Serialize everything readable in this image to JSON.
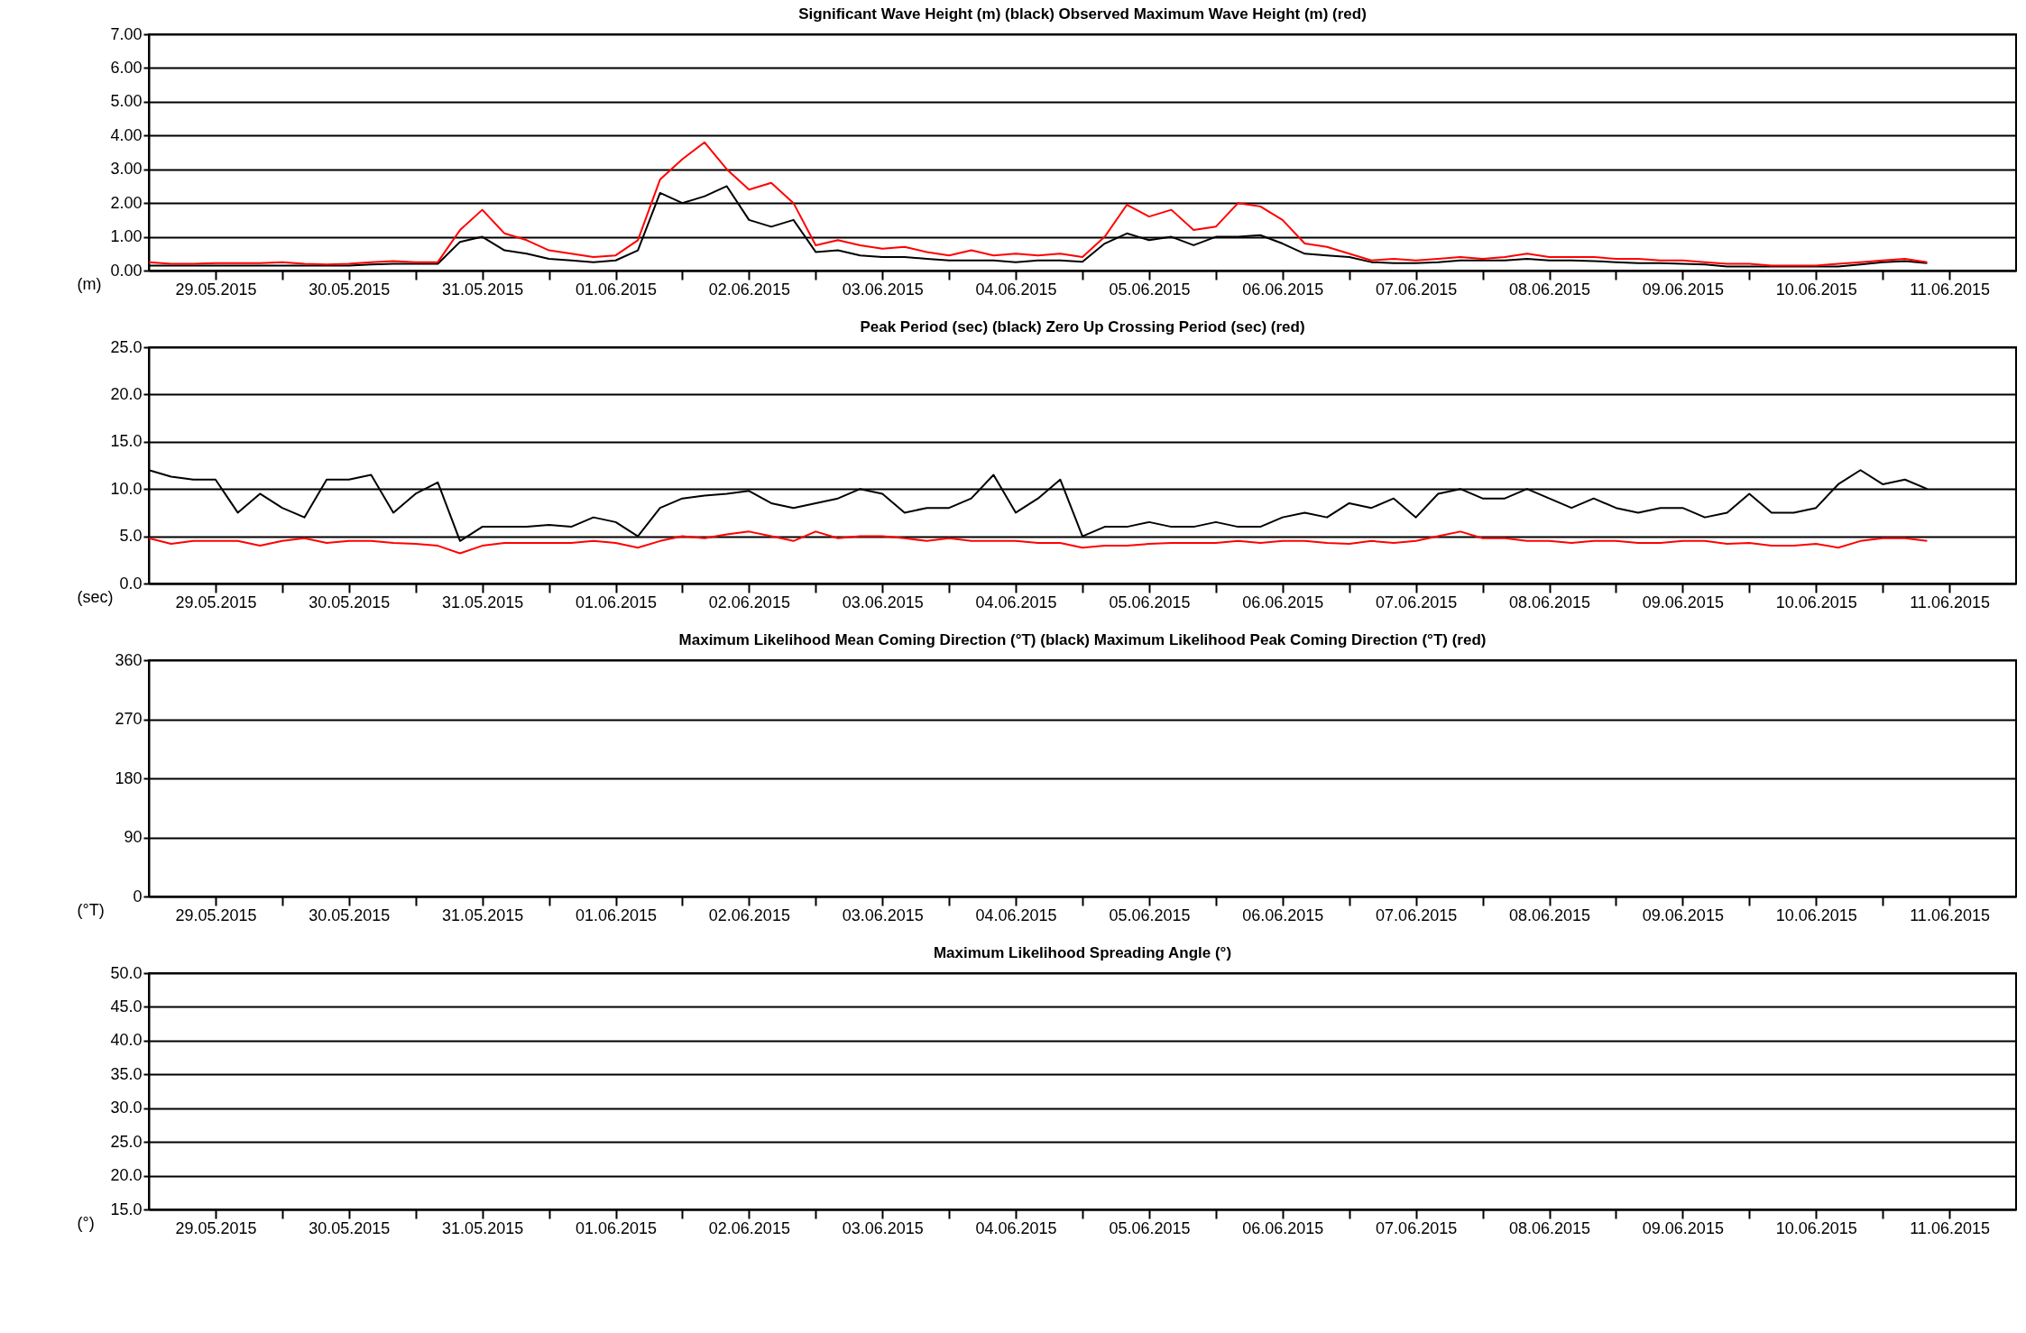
{
  "chart_data": [
    {
      "type": "line",
      "title": "Significant Wave Height (m) (black) Observed Maximum Wave Height (m) (red)",
      "ylabel": "(m)",
      "x": [
        "2015-05-29T00:00",
        "2015-05-29T04:00",
        "2015-05-29T08:00",
        "2015-05-29T12:00",
        "2015-05-29T16:00",
        "2015-05-29T20:00",
        "2015-05-30T00:00",
        "2015-05-30T04:00",
        "2015-05-30T08:00",
        "2015-05-30T12:00",
        "2015-05-30T16:00",
        "2015-05-30T20:00",
        "2015-05-31T00:00",
        "2015-05-31T04:00",
        "2015-05-31T08:00",
        "2015-05-31T12:00",
        "2015-05-31T16:00",
        "2015-05-31T20:00",
        "2015-06-01T00:00",
        "2015-06-01T04:00",
        "2015-06-01T08:00",
        "2015-06-01T12:00",
        "2015-06-01T16:00",
        "2015-06-01T20:00",
        "2015-06-02T00:00",
        "2015-06-02T04:00",
        "2015-06-02T08:00",
        "2015-06-02T12:00",
        "2015-06-02T16:00",
        "2015-06-02T20:00",
        "2015-06-03T00:00",
        "2015-06-03T04:00",
        "2015-06-03T08:00",
        "2015-06-03T12:00",
        "2015-06-03T16:00",
        "2015-06-03T20:00",
        "2015-06-04T00:00",
        "2015-06-04T04:00",
        "2015-06-04T08:00",
        "2015-06-04T12:00",
        "2015-06-04T16:00",
        "2015-06-04T20:00",
        "2015-06-05T00:00",
        "2015-06-05T04:00",
        "2015-06-05T08:00",
        "2015-06-05T12:00",
        "2015-06-05T16:00",
        "2015-06-05T20:00",
        "2015-06-06T00:00",
        "2015-06-06T04:00",
        "2015-06-06T08:00",
        "2015-06-06T12:00",
        "2015-06-06T16:00",
        "2015-06-06T20:00",
        "2015-06-07T00:00",
        "2015-06-07T04:00",
        "2015-06-07T08:00",
        "2015-06-07T12:00",
        "2015-06-07T16:00",
        "2015-06-07T20:00",
        "2015-06-08T00:00",
        "2015-06-08T04:00",
        "2015-06-08T08:00",
        "2015-06-08T12:00",
        "2015-06-08T16:00",
        "2015-06-08T20:00",
        "2015-06-09T00:00",
        "2015-06-09T04:00",
        "2015-06-09T08:00",
        "2015-06-09T12:00",
        "2015-06-09T16:00",
        "2015-06-09T20:00",
        "2015-06-10T00:00",
        "2015-06-10T04:00",
        "2015-06-10T08:00",
        "2015-06-10T12:00",
        "2015-06-10T16:00",
        "2015-06-10T20:00",
        "2015-06-11T00:00",
        "2015-06-11T04:00",
        "2015-06-11T08:00"
      ],
      "series": [
        {
          "color": "#000000",
          "values": [
            0.15,
            0.15,
            0.15,
            0.15,
            0.15,
            0.15,
            0.15,
            0.15,
            0.15,
            0.15,
            0.18,
            0.2,
            0.2,
            0.2,
            0.85,
            1.0,
            0.6,
            0.5,
            0.35,
            0.3,
            0.25,
            0.3,
            0.6,
            2.3,
            2.0,
            2.2,
            2.5,
            1.5,
            1.3,
            1.5,
            0.55,
            0.6,
            0.45,
            0.4,
            0.4,
            0.35,
            0.3,
            0.3,
            0.3,
            0.25,
            0.3,
            0.3,
            0.26,
            0.8,
            1.1,
            0.9,
            1.0,
            0.75,
            1.0,
            1.0,
            1.05,
            0.8,
            0.5,
            0.45,
            0.4,
            0.25,
            0.22,
            0.22,
            0.25,
            0.3,
            0.3,
            0.3,
            0.35,
            0.3,
            0.3,
            0.28,
            0.25,
            0.22,
            0.22,
            0.2,
            0.18,
            0.12,
            0.12,
            0.12,
            0.12,
            0.12,
            0.12,
            0.18,
            0.25,
            0.28,
            0.22
          ]
        },
        {
          "color": "#ff0000",
          "values": [
            0.25,
            0.2,
            0.2,
            0.22,
            0.22,
            0.22,
            0.25,
            0.2,
            0.18,
            0.2,
            0.25,
            0.28,
            0.25,
            0.25,
            1.2,
            1.8,
            1.1,
            0.9,
            0.6,
            0.5,
            0.4,
            0.45,
            0.9,
            2.7,
            3.3,
            3.8,
            3.0,
            2.4,
            2.6,
            2.0,
            0.75,
            0.9,
            0.75,
            0.65,
            0.7,
            0.55,
            0.45,
            0.6,
            0.45,
            0.5,
            0.45,
            0.5,
            0.4,
            1.0,
            1.95,
            1.6,
            1.8,
            1.2,
            1.3,
            2.0,
            1.9,
            1.5,
            0.8,
            0.7,
            0.5,
            0.3,
            0.35,
            0.3,
            0.35,
            0.4,
            0.35,
            0.4,
            0.5,
            0.4,
            0.4,
            0.4,
            0.35,
            0.35,
            0.3,
            0.3,
            0.25,
            0.2,
            0.2,
            0.15,
            0.15,
            0.15,
            0.2,
            0.25,
            0.3,
            0.35,
            0.25
          ]
        }
      ],
      "xlim": [
        "2015-05-29",
        "2015-06-12"
      ],
      "xticks": [
        {
          "value": "2015-05-29T12:00",
          "label": "29.05.2015"
        },
        {
          "value": "2015-05-30T12:00",
          "label": "30.05.2015"
        },
        {
          "value": "2015-05-31T12:00",
          "label": "31.05.2015"
        },
        {
          "value": "2015-06-01T12:00",
          "label": "01.06.2015"
        },
        {
          "value": "2015-06-02T12:00",
          "label": "02.06.2015"
        },
        {
          "value": "2015-06-03T12:00",
          "label": "03.06.2015"
        },
        {
          "value": "2015-06-04T12:00",
          "label": "04.06.2015"
        },
        {
          "value": "2015-06-05T12:00",
          "label": "05.06.2015"
        },
        {
          "value": "2015-06-06T12:00",
          "label": "06.06.2015"
        },
        {
          "value": "2015-06-07T12:00",
          "label": "07.06.2015"
        },
        {
          "value": "2015-06-08T12:00",
          "label": "08.06.2015"
        },
        {
          "value": "2015-06-09T12:00",
          "label": "09.06.2015"
        },
        {
          "value": "2015-06-10T12:00",
          "label": "10.06.2015"
        },
        {
          "value": "2015-06-11T12:00",
          "label": "11.06.2015"
        },
        {
          "value": "2015-05-30",
          "label": null
        },
        {
          "value": "2015-05-31",
          "label": null
        },
        {
          "value": "2015-06-01",
          "label": null
        },
        {
          "value": "2015-06-02",
          "label": null
        },
        {
          "value": "2015-06-03",
          "label": null
        },
        {
          "value": "2015-06-04",
          "label": null
        },
        {
          "value": "2015-06-05",
          "label": null
        },
        {
          "value": "2015-06-06",
          "label": null
        },
        {
          "value": "2015-06-07",
          "label": null
        },
        {
          "value": "2015-06-08",
          "label": null
        },
        {
          "value": "2015-06-09",
          "label": null
        },
        {
          "value": "2015-06-10",
          "label": null
        },
        {
          "value": "2015-06-11",
          "label": null
        }
      ],
      "ylim": [
        0,
        7
      ],
      "yticks": [
        {
          "value": 0,
          "label": "0.00"
        },
        {
          "value": 1,
          "label": "1.00"
        },
        {
          "value": 2,
          "label": "2.00"
        },
        {
          "value": 3,
          "label": "3.00"
        },
        {
          "value": 4,
          "label": "4.00"
        },
        {
          "value": 5,
          "label": "5.00"
        },
        {
          "value": 6,
          "label": "6.00"
        },
        {
          "value": 7,
          "label": "7.00"
        }
      ],
      "grid": true
    },
    {
      "type": "line",
      "title": "Peak Period (sec) (black) Zero Up Crossing Period (sec) (red)",
      "ylabel": "(sec)",
      "x": [
        "2015-05-29T00:00",
        "2015-05-29T04:00",
        "2015-05-29T08:00",
        "2015-05-29T12:00",
        "2015-05-29T16:00",
        "2015-05-29T20:00",
        "2015-05-30T00:00",
        "2015-05-30T04:00",
        "2015-05-30T08:00",
        "2015-05-30T12:00",
        "2015-05-30T16:00",
        "2015-05-30T20:00",
        "2015-05-31T00:00",
        "2015-05-31T04:00",
        "2015-05-31T08:00",
        "2015-05-31T12:00",
        "2015-05-31T16:00",
        "2015-05-31T20:00",
        "2015-06-01T00:00",
        "2015-06-01T04:00",
        "2015-06-01T08:00",
        "2015-06-01T12:00",
        "2015-06-01T16:00",
        "2015-06-01T20:00",
        "2015-06-02T00:00",
        "2015-06-02T04:00",
        "2015-06-02T08:00",
        "2015-06-02T12:00",
        "2015-06-02T16:00",
        "2015-06-02T20:00",
        "2015-06-03T00:00",
        "2015-06-03T04:00",
        "2015-06-03T08:00",
        "2015-06-03T12:00",
        "2015-06-03T16:00",
        "2015-06-03T20:00",
        "2015-06-04T00:00",
        "2015-06-04T04:00",
        "2015-06-04T08:00",
        "2015-06-04T12:00",
        "2015-06-04T16:00",
        "2015-06-04T20:00",
        "2015-06-05T00:00",
        "2015-06-05T04:00",
        "2015-06-05T08:00",
        "2015-06-05T12:00",
        "2015-06-05T16:00",
        "2015-06-05T20:00",
        "2015-06-06T00:00",
        "2015-06-06T04:00",
        "2015-06-06T08:00",
        "2015-06-06T12:00",
        "2015-06-06T16:00",
        "2015-06-06T20:00",
        "2015-06-07T00:00",
        "2015-06-07T04:00",
        "2015-06-07T08:00",
        "2015-06-07T12:00",
        "2015-06-07T16:00",
        "2015-06-07T20:00",
        "2015-06-08T00:00",
        "2015-06-08T04:00",
        "2015-06-08T08:00",
        "2015-06-08T12:00",
        "2015-06-08T16:00",
        "2015-06-08T20:00",
        "2015-06-09T00:00",
        "2015-06-09T04:00",
        "2015-06-09T08:00",
        "2015-06-09T12:00",
        "2015-06-09T16:00",
        "2015-06-09T20:00",
        "2015-06-10T00:00",
        "2015-06-10T04:00",
        "2015-06-10T08:00",
        "2015-06-10T12:00",
        "2015-06-10T16:00",
        "2015-06-10T20:00",
        "2015-06-11T00:00",
        "2015-06-11T04:00",
        "2015-06-11T08:00"
      ],
      "series": [
        {
          "color": "#000000",
          "values": [
            12.0,
            11.3,
            11.0,
            11.0,
            7.5,
            9.5,
            8.0,
            7.0,
            11.0,
            11.0,
            11.5,
            7.5,
            9.5,
            10.7,
            4.5,
            6.0,
            6.0,
            6.0,
            6.2,
            6.0,
            7.0,
            6.5,
            5.0,
            8.0,
            9.0,
            9.3,
            9.5,
            9.8,
            8.5,
            8.0,
            8.5,
            9.0,
            10.0,
            9.5,
            7.5,
            8.0,
            8.0,
            9.0,
            11.5,
            7.5,
            9.0,
            11.0,
            5.0,
            6.0,
            6.0,
            6.5,
            6.0,
            6.0,
            6.5,
            6.0,
            6.0,
            7.0,
            7.5,
            7.0,
            8.5,
            8.0,
            9.0,
            7.0,
            9.5,
            10.0,
            9.0,
            9.0,
            10.0,
            9.0,
            8.0,
            9.0,
            8.0,
            7.5,
            8.0,
            8.0,
            7.0,
            7.5,
            9.5,
            7.5,
            7.5,
            8.0,
            10.5,
            12.0,
            10.5,
            11.0,
            10.0
          ]
        },
        {
          "color": "#ff0000",
          "values": [
            4.8,
            4.2,
            4.5,
            4.5,
            4.5,
            4.0,
            4.5,
            4.8,
            4.3,
            4.5,
            4.5,
            4.3,
            4.2,
            4.0,
            3.2,
            4.0,
            4.3,
            4.3,
            4.3,
            4.3,
            4.5,
            4.3,
            3.8,
            4.5,
            5.0,
            4.8,
            5.2,
            5.5,
            5.0,
            4.5,
            5.5,
            4.8,
            5.0,
            5.0,
            4.8,
            4.5,
            4.8,
            4.5,
            4.5,
            4.5,
            4.3,
            4.3,
            3.8,
            4.0,
            4.0,
            4.2,
            4.3,
            4.3,
            4.3,
            4.5,
            4.3,
            4.5,
            4.5,
            4.3,
            4.2,
            4.5,
            4.3,
            4.5,
            5.0,
            5.5,
            4.8,
            4.8,
            4.5,
            4.5,
            4.3,
            4.5,
            4.5,
            4.3,
            4.3,
            4.5,
            4.5,
            4.2,
            4.3,
            4.0,
            4.0,
            4.2,
            3.8,
            4.5,
            4.8,
            4.8,
            4.5
          ]
        }
      ],
      "xlim": [
        "2015-05-29",
        "2015-06-12"
      ],
      "xticks": [
        {
          "value": "2015-05-29T12:00",
          "label": "29.05.2015"
        },
        {
          "value": "2015-05-30T12:00",
          "label": "30.05.2015"
        },
        {
          "value": "2015-05-31T12:00",
          "label": "31.05.2015"
        },
        {
          "value": "2015-06-01T12:00",
          "label": "01.06.2015"
        },
        {
          "value": "2015-06-02T12:00",
          "label": "02.06.2015"
        },
        {
          "value": "2015-06-03T12:00",
          "label": "03.06.2015"
        },
        {
          "value": "2015-06-04T12:00",
          "label": "04.06.2015"
        },
        {
          "value": "2015-06-05T12:00",
          "label": "05.06.2015"
        },
        {
          "value": "2015-06-06T12:00",
          "label": "06.06.2015"
        },
        {
          "value": "2015-06-07T12:00",
          "label": "07.06.2015"
        },
        {
          "value": "2015-06-08T12:00",
          "label": "08.06.2015"
        },
        {
          "value": "2015-06-09T12:00",
          "label": "09.06.2015"
        },
        {
          "value": "2015-06-10T12:00",
          "label": "10.06.2015"
        },
        {
          "value": "2015-06-11T12:00",
          "label": "11.06.2015"
        },
        {
          "value": "2015-05-30",
          "label": null
        },
        {
          "value": "2015-05-31",
          "label": null
        },
        {
          "value": "2015-06-01",
          "label": null
        },
        {
          "value": "2015-06-02",
          "label": null
        },
        {
          "value": "2015-06-03",
          "label": null
        },
        {
          "value": "2015-06-04",
          "label": null
        },
        {
          "value": "2015-06-05",
          "label": null
        },
        {
          "value": "2015-06-06",
          "label": null
        },
        {
          "value": "2015-06-07",
          "label": null
        },
        {
          "value": "2015-06-08",
          "label": null
        },
        {
          "value": "2015-06-09",
          "label": null
        },
        {
          "value": "2015-06-10",
          "label": null
        },
        {
          "value": "2015-06-11",
          "label": null
        }
      ],
      "ylim": [
        0,
        25
      ],
      "yticks": [
        {
          "value": 0,
          "label": "0.0"
        },
        {
          "value": 5,
          "label": "5.0"
        },
        {
          "value": 10,
          "label": "10.0"
        },
        {
          "value": 15,
          "label": "15.0"
        },
        {
          "value": 20,
          "label": "20.0"
        },
        {
          "value": 25,
          "label": "25.0"
        }
      ],
      "grid": true
    },
    {
      "type": "line",
      "title": "Maximum Likelihood Mean Coming Direction (°T) (black) Maximum Likelihood Peak Coming Direction (°T) (red)",
      "ylabel": "(°T)",
      "xlim": [
        "2015-05-29",
        "2015-06-12"
      ],
      "xticks": [
        {
          "value": "2015-05-29T12:00",
          "label": "29.05.2015"
        },
        {
          "value": "2015-05-30T12:00",
          "label": "30.05.2015"
        },
        {
          "value": "2015-05-31T12:00",
          "label": "31.05.2015"
        },
        {
          "value": "2015-06-01T12:00",
          "label": "01.06.2015"
        },
        {
          "value": "2015-06-02T12:00",
          "label": "02.06.2015"
        },
        {
          "value": "2015-06-03T12:00",
          "label": "03.06.2015"
        },
        {
          "value": "2015-06-04T12:00",
          "label": "04.06.2015"
        },
        {
          "value": "2015-06-05T12:00",
          "label": "05.06.2015"
        },
        {
          "value": "2015-06-06T12:00",
          "label": "06.06.2015"
        },
        {
          "value": "2015-06-07T12:00",
          "label": "07.06.2015"
        },
        {
          "value": "2015-06-08T12:00",
          "label": "08.06.2015"
        },
        {
          "value": "2015-06-09T12:00",
          "label": "09.06.2015"
        },
        {
          "value": "2015-06-10T12:00",
          "label": "10.06.2015"
        },
        {
          "value": "2015-06-11T12:00",
          "label": "11.06.2015"
        },
        {
          "value": "2015-05-30",
          "label": null
        },
        {
          "value": "2015-05-31",
          "label": null
        },
        {
          "value": "2015-06-01",
          "label": null
        },
        {
          "value": "2015-06-02",
          "label": null
        },
        {
          "value": "2015-06-03",
          "label": null
        },
        {
          "value": "2015-06-04",
          "label": null
        },
        {
          "value": "2015-06-05",
          "label": null
        },
        {
          "value": "2015-06-06",
          "label": null
        },
        {
          "value": "2015-06-07",
          "label": null
        },
        {
          "value": "2015-06-08",
          "label": null
        },
        {
          "value": "2015-06-09",
          "label": null
        },
        {
          "value": "2015-06-10",
          "label": null
        },
        {
          "value": "2015-06-11",
          "label": null
        }
      ],
      "ylim": [
        0,
        360
      ],
      "yticks": [
        0,
        90,
        180,
        270,
        360
      ],
      "grid": true
    },
    {
      "type": "line",
      "title": "Maximum Likelihood Spreading Angle (°)",
      "ylabel": "(°)",
      "xlim": [
        "2015-05-29",
        "2015-06-12"
      ],
      "xticks": [
        {
          "value": "2015-05-29T12:00",
          "label": "29.05.2015"
        },
        {
          "value": "2015-05-30T12:00",
          "label": "30.05.2015"
        },
        {
          "value": "2015-05-31T12:00",
          "label": "31.05.2015"
        },
        {
          "value": "2015-06-01T12:00",
          "label": "01.06.2015"
        },
        {
          "value": "2015-06-02T12:00",
          "label": "02.06.2015"
        },
        {
          "value": "2015-06-03T12:00",
          "label": "03.06.2015"
        },
        {
          "value": "2015-06-04T12:00",
          "label": "04.06.2015"
        },
        {
          "value": "2015-06-05T12:00",
          "label": "05.06.2015"
        },
        {
          "value": "2015-06-06T12:00",
          "label": "06.06.2015"
        },
        {
          "value": "2015-06-07T12:00",
          "label": "07.06.2015"
        },
        {
          "value": "2015-06-08T12:00",
          "label": "08.06.2015"
        },
        {
          "value": "2015-06-09T12:00",
          "label": "09.06.2015"
        },
        {
          "value": "2015-06-10T12:00",
          "label": "10.06.2015"
        },
        {
          "value": "2015-06-11T12:00",
          "label": "11.06.2015"
        },
        {
          "value": "2015-05-30",
          "label": null
        },
        {
          "value": "2015-05-31",
          "label": null
        },
        {
          "value": "2015-06-01",
          "label": null
        },
        {
          "value": "2015-06-02",
          "label": null
        },
        {
          "value": "2015-06-03",
          "label": null
        },
        {
          "value": "2015-06-04",
          "label": null
        },
        {
          "value": "2015-06-05",
          "label": null
        },
        {
          "value": "2015-06-06",
          "label": null
        },
        {
          "value": "2015-06-07",
          "label": null
        },
        {
          "value": "2015-06-08",
          "label": null
        },
        {
          "value": "2015-06-09",
          "label": null
        },
        {
          "value": "2015-06-10",
          "label": null
        },
        {
          "value": "2015-06-11",
          "label": null
        }
      ],
      "ylim": [
        15,
        50
      ],
      "yticks": [
        {
          "value": 15,
          "label": "15.0"
        },
        {
          "value": 20,
          "label": "20.0"
        },
        {
          "value": 25,
          "label": "25.0"
        },
        {
          "value": 30,
          "label": "30.0"
        },
        {
          "value": 35,
          "label": "35.0"
        },
        {
          "value": 40,
          "label": "40.0"
        },
        {
          "value": 45,
          "label": "45.0"
        },
        {
          "value": 50,
          "label": "50.0"
        }
      ],
      "grid": true
    }
  ]
}
